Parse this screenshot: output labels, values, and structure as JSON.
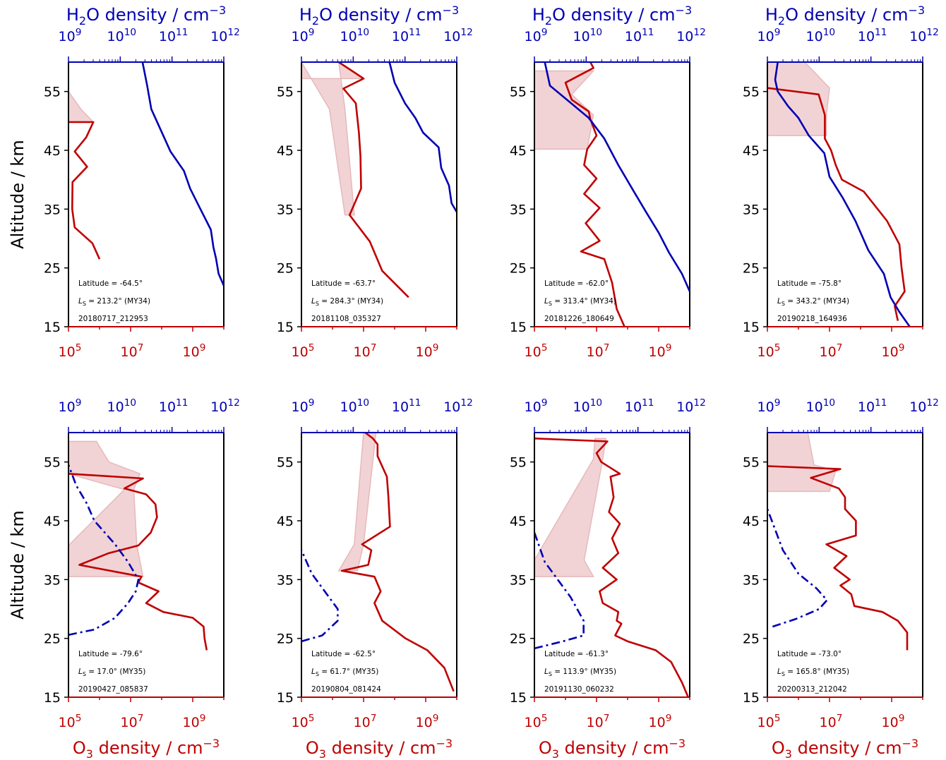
{
  "labels": {
    "h2o_axis": "H2O density / cm−3",
    "o3_axis": "O3 density / cm−3",
    "altitude": "Altitude / km"
  },
  "colors": {
    "o3": "#c00000",
    "h2o": "#0000b4",
    "band": "#f2d3d5",
    "band_edge": "#e6b8bb"
  },
  "chart_data": [
    {
      "type": "line",
      "latitude": "Latitude = -64.5°",
      "ls": "213.2° (MY34)",
      "id": "20180717_212953",
      "yticks": [
        15,
        25,
        35,
        45,
        55
      ],
      "ylim": [
        15,
        60
      ],
      "o3_xlim": [
        5,
        10
      ],
      "h2o_xlim": [
        9,
        12
      ],
      "o3": [
        [
          6.0,
          26.5
        ],
        [
          5.77,
          29.2
        ],
        [
          5.2,
          31.9
        ],
        [
          5.12,
          35
        ],
        [
          5.13,
          39.6
        ],
        [
          5.6,
          42.2
        ],
        [
          5.2,
          44.8
        ],
        [
          5.57,
          47.2
        ],
        [
          5.8,
          49.8
        ],
        [
          5.01,
          49.8
        ]
      ],
      "o3_band": [
        [
          5.0,
          49.8,
          5.8
        ],
        [
          5.0,
          52.0,
          5.4
        ],
        [
          5.0,
          55.0,
          5.0
        ]
      ],
      "h2o": [
        [
          12,
          22
        ],
        [
          11.9,
          24
        ],
        [
          11.85,
          26.6
        ],
        [
          11.8,
          28.5
        ],
        [
          11.75,
          31.5
        ],
        [
          11.52,
          35.5
        ],
        [
          11.35,
          38.5
        ],
        [
          11.23,
          41.5
        ],
        [
          10.97,
          44.8
        ],
        [
          10.78,
          48.5
        ],
        [
          10.6,
          52
        ],
        [
          10.52,
          56
        ],
        [
          10.43,
          60
        ]
      ],
      "h2o_style": "solid"
    },
    {
      "type": "line",
      "latitude": "Latitude = -63.7°",
      "ls": "284.3° (MY34)",
      "id": "20181108_035327",
      "yticks": [
        15,
        25,
        35,
        45,
        55
      ],
      "ylim": [
        15,
        60
      ],
      "o3_xlim": [
        5,
        10
      ],
      "h2o_xlim": [
        9,
        12
      ],
      "o3": [
        [
          8.45,
          20
        ],
        [
          7.6,
          24.5
        ],
        [
          7.2,
          29.5
        ],
        [
          6.55,
          34
        ],
        [
          6.92,
          38.5
        ],
        [
          6.9,
          44
        ],
        [
          6.85,
          48
        ],
        [
          6.75,
          53
        ],
        [
          6.35,
          55.5
        ],
        [
          7.0,
          57.2
        ],
        [
          6.2,
          60
        ]
      ],
      "o3_band": [
        [
          5.0,
          57.2,
          7.0
        ],
        [
          5.0,
          60.0,
          6.2
        ],
        [
          5.9,
          52,
          6.4
        ],
        [
          6.4,
          34,
          6.7
        ]
      ],
      "h2o": [
        [
          12,
          34.5
        ],
        [
          11.9,
          36
        ],
        [
          11.85,
          39
        ],
        [
          11.7,
          42
        ],
        [
          11.65,
          45.5
        ],
        [
          11.35,
          48
        ],
        [
          11.2,
          50.5
        ],
        [
          11.0,
          53
        ],
        [
          10.8,
          56.5
        ],
        [
          10.7,
          60
        ]
      ],
      "h2o_style": "solid"
    },
    {
      "type": "line",
      "latitude": "Latitude = -62.0°",
      "ls": "313.4° (MY34)",
      "id": "20181226_180649",
      "yticks": [
        15,
        25,
        35,
        45,
        55
      ],
      "ylim": [
        15,
        60
      ],
      "o3_xlim": [
        5,
        10
      ],
      "h2o_xlim": [
        9,
        12
      ],
      "o3": [
        [
          7.9,
          15
        ],
        [
          7.65,
          18
        ],
        [
          7.5,
          22.5
        ],
        [
          7.25,
          26.5
        ],
        [
          6.5,
          27.8
        ],
        [
          7.1,
          29.6
        ],
        [
          6.65,
          32.6
        ],
        [
          7.1,
          35.2
        ],
        [
          6.6,
          37.6
        ],
        [
          7.0,
          40.2
        ],
        [
          6.6,
          42.5
        ],
        [
          6.7,
          45.2
        ],
        [
          7.0,
          47.5
        ],
        [
          6.8,
          50.3
        ],
        [
          6.75,
          51.6
        ],
        [
          6.2,
          53.6
        ],
        [
          6.0,
          56.5
        ],
        [
          6.9,
          59
        ],
        [
          6.8,
          60
        ]
      ],
      "o3_band": [
        [
          5.0,
          45.2,
          6.7
        ],
        [
          5.0,
          51.0,
          6.9
        ],
        [
          5.0,
          54.5,
          6.2
        ],
        [
          5.0,
          58.5,
          6.9
        ]
      ],
      "h2o": [
        [
          12,
          21
        ],
        [
          11.85,
          24
        ],
        [
          11.6,
          27.6
        ],
        [
          11.4,
          31
        ],
        [
          11.15,
          34.6
        ],
        [
          10.92,
          38
        ],
        [
          10.62,
          42.5
        ],
        [
          10.35,
          47
        ],
        [
          10.05,
          50.5
        ],
        [
          9.6,
          53.8
        ],
        [
          9.3,
          56
        ],
        [
          9.2,
          60
        ]
      ],
      "h2o_style": "solid"
    },
    {
      "type": "line",
      "latitude": "Latitude = -75.8°",
      "ls": "343.2° (MY34)",
      "id": "20190218_164936",
      "yticks": [
        15,
        25,
        35,
        45,
        55
      ],
      "ylim": [
        15,
        60
      ],
      "o3_xlim": [
        5,
        10
      ],
      "h2o_xlim": [
        9,
        12
      ],
      "o3": [
        [
          9.2,
          16
        ],
        [
          9.1,
          18.5
        ],
        [
          9.42,
          21
        ],
        [
          9.32,
          25
        ],
        [
          9.25,
          29
        ],
        [
          8.85,
          33
        ],
        [
          8.1,
          38
        ],
        [
          7.4,
          40
        ],
        [
          7.2,
          42.5
        ],
        [
          7.05,
          45
        ],
        [
          6.85,
          47
        ],
        [
          6.85,
          51
        ],
        [
          6.65,
          54.5
        ],
        [
          5.0,
          55.6
        ]
      ],
      "o3_band": [
        [
          5.0,
          47.5,
          6.9
        ],
        [
          5.0,
          51.0,
          6.9
        ],
        [
          5.0,
          55.6,
          7.0
        ],
        [
          5.0,
          60.0,
          6.2
        ]
      ],
      "h2o": [
        [
          11.75,
          15
        ],
        [
          11.55,
          17.5
        ],
        [
          11.38,
          20
        ],
        [
          11.25,
          24
        ],
        [
          10.95,
          28
        ],
        [
          10.7,
          33
        ],
        [
          10.45,
          37
        ],
        [
          10.2,
          40.5
        ],
        [
          10.1,
          44.5
        ],
        [
          9.8,
          47.5
        ],
        [
          9.6,
          50.5
        ],
        [
          9.4,
          52.5
        ],
        [
          9.2,
          55
        ],
        [
          9.15,
          57
        ],
        [
          9.2,
          60
        ]
      ],
      "h2o_style": "solid"
    },
    {
      "type": "line",
      "latitude": "Latitude = -79.6°",
      "ls": "17.0° (MY35)",
      "id": "20190427_085837",
      "yticks": [
        15,
        25,
        35,
        45,
        55
      ],
      "ylim": [
        15,
        60
      ],
      "o3_xlim": [
        5,
        10
      ],
      "h2o_xlim": [
        9,
        12
      ],
      "o3": [
        [
          9.45,
          23
        ],
        [
          9.38,
          25
        ],
        [
          9.35,
          27
        ],
        [
          9.0,
          28.5
        ],
        [
          8.05,
          29.5
        ],
        [
          7.5,
          31
        ],
        [
          7.9,
          33
        ],
        [
          7.25,
          34.5
        ],
        [
          7.35,
          35.5
        ],
        [
          5.35,
          37.5
        ],
        [
          6.3,
          39.5
        ],
        [
          7.25,
          40.8
        ],
        [
          7.65,
          43
        ],
        [
          7.85,
          45.6
        ],
        [
          7.8,
          47.8
        ],
        [
          7.5,
          49.5
        ],
        [
          6.8,
          50.5
        ],
        [
          7.4,
          52.2
        ],
        [
          5.0,
          53
        ]
      ],
      "o3_band": [
        [
          5.0,
          35.5,
          7.4
        ],
        [
          5.0,
          40.8,
          7.2
        ],
        [
          6.8,
          50.3,
          7.1
        ],
        [
          5.0,
          53.0,
          7.3
        ],
        [
          5.0,
          55.0,
          6.3
        ],
        [
          5.0,
          58.5,
          5.9
        ]
      ],
      "h2o": [
        [
          9.0,
          25.6
        ],
        [
          9.5,
          26.5
        ],
        [
          9.9,
          28.5
        ],
        [
          10.15,
          31
        ],
        [
          10.3,
          33
        ],
        [
          10.35,
          35
        ],
        [
          10.15,
          38
        ],
        [
          9.9,
          41
        ],
        [
          9.5,
          45
        ],
        [
          9.35,
          48
        ],
        [
          9.15,
          51
        ],
        [
          9.0,
          54.5
        ]
      ],
      "h2o_style": "dashdot"
    },
    {
      "type": "line",
      "latitude": "Latitude = -62.5°",
      "ls": "61.7° (MY35)",
      "id": "20190804_081424",
      "yticks": [
        15,
        25,
        35,
        45,
        55
      ],
      "ylim": [
        15,
        60
      ],
      "o3_xlim": [
        5,
        10
      ],
      "h2o_xlim": [
        9,
        12
      ],
      "o3": [
        [
          9.9,
          16
        ],
        [
          9.6,
          20
        ],
        [
          9.05,
          23
        ],
        [
          8.35,
          25
        ],
        [
          7.6,
          28
        ],
        [
          7.35,
          31
        ],
        [
          7.55,
          33
        ],
        [
          7.35,
          35.5
        ],
        [
          6.3,
          36.5
        ],
        [
          7.15,
          37.5
        ],
        [
          7.25,
          40
        ],
        [
          6.95,
          41
        ],
        [
          7.25,
          42
        ],
        [
          7.85,
          44
        ],
        [
          7.8,
          49
        ],
        [
          7.75,
          52.5
        ],
        [
          7.45,
          56
        ],
        [
          7.45,
          58
        ],
        [
          7.3,
          59
        ],
        [
          7.05,
          60
        ]
      ],
      "o3_band": [
        [
          6.2,
          36.5,
          6.8
        ],
        [
          6.7,
          41,
          7.0
        ],
        [
          7.0,
          60,
          7.4
        ]
      ],
      "h2o": [
        [
          9.0,
          24.5
        ],
        [
          9.4,
          25.5
        ],
        [
          9.7,
          28
        ],
        [
          9.7,
          30
        ],
        [
          9.45,
          33
        ],
        [
          9.2,
          36
        ],
        [
          9.0,
          40
        ]
      ],
      "h2o_style": "dashdot"
    },
    {
      "type": "line",
      "latitude": "Latitude = -61.3°",
      "ls": "113.9° (MY35)",
      "id": "20191130_060232",
      "yticks": [
        15,
        25,
        35,
        45,
        55
      ],
      "ylim": [
        15,
        60
      ],
      "o3_xlim": [
        5,
        10
      ],
      "h2o_xlim": [
        9,
        12
      ],
      "o3": [
        [
          9.95,
          15
        ],
        [
          9.75,
          17.5
        ],
        [
          9.4,
          21
        ],
        [
          8.9,
          23
        ],
        [
          8.0,
          24.5
        ],
        [
          7.6,
          25.5
        ],
        [
          7.8,
          27.5
        ],
        [
          7.65,
          28
        ],
        [
          7.7,
          29.5
        ],
        [
          7.2,
          31
        ],
        [
          7.1,
          33
        ],
        [
          7.65,
          35
        ],
        [
          7.2,
          37
        ],
        [
          7.7,
          39.5
        ],
        [
          7.5,
          42
        ],
        [
          7.75,
          44.5
        ],
        [
          7.4,
          46.5
        ],
        [
          7.55,
          49
        ],
        [
          7.45,
          52.5
        ],
        [
          7.75,
          53
        ],
        [
          7.15,
          55
        ],
        [
          7.0,
          56.5
        ],
        [
          7.35,
          58.5
        ],
        [
          5.0,
          59
        ]
      ],
      "o3_band": [
        [
          5.0,
          35.5,
          6.9
        ],
        [
          5.0,
          38.3,
          6.6
        ],
        [
          6.9,
          55.5,
          7.2
        ],
        [
          6.95,
          59,
          7.3
        ]
      ],
      "h2o": [
        [
          9.0,
          23.3
        ],
        [
          9.55,
          24.5
        ],
        [
          9.95,
          25.5
        ],
        [
          9.95,
          28
        ],
        [
          9.7,
          32
        ],
        [
          9.45,
          35
        ],
        [
          9.2,
          38
        ],
        [
          9.0,
          43
        ]
      ],
      "h2o_style": "dashdot"
    },
    {
      "type": "line",
      "latitude": "Latitude = -73.0°",
      "ls": "165.8° (MY35)",
      "id": "20200313_212042",
      "yticks": [
        15,
        25,
        35,
        45,
        55
      ],
      "ylim": [
        15,
        60
      ],
      "o3_xlim": [
        5,
        10
      ],
      "h2o_xlim": [
        9,
        12
      ],
      "o3": [
        [
          9.5,
          23
        ],
        [
          9.5,
          26
        ],
        [
          9.2,
          28
        ],
        [
          8.7,
          29.5
        ],
        [
          7.8,
          30.5
        ],
        [
          7.7,
          32.5
        ],
        [
          7.35,
          34
        ],
        [
          7.65,
          35
        ],
        [
          7.15,
          37
        ],
        [
          7.55,
          39
        ],
        [
          6.9,
          41
        ],
        [
          7.85,
          42.5
        ],
        [
          7.85,
          45
        ],
        [
          7.5,
          47
        ],
        [
          7.5,
          49
        ],
        [
          7.3,
          50.5
        ],
        [
          6.4,
          52.3
        ],
        [
          7.35,
          53.8
        ],
        [
          5.0,
          54.3
        ]
      ],
      "o3_band": [
        [
          5.0,
          50.0,
          7.0
        ],
        [
          5.0,
          53.5,
          7.2
        ],
        [
          5.0,
          54.5,
          6.5
        ],
        [
          5.0,
          60.0,
          6.3
        ]
      ],
      "h2o": [
        [
          9.1,
          27
        ],
        [
          9.55,
          28.3
        ],
        [
          10.0,
          30
        ],
        [
          10.15,
          31.5
        ],
        [
          9.95,
          33.5
        ],
        [
          9.6,
          36
        ],
        [
          9.3,
          40
        ],
        [
          9.0,
          47
        ]
      ],
      "h2o_style": "dashdot"
    }
  ]
}
